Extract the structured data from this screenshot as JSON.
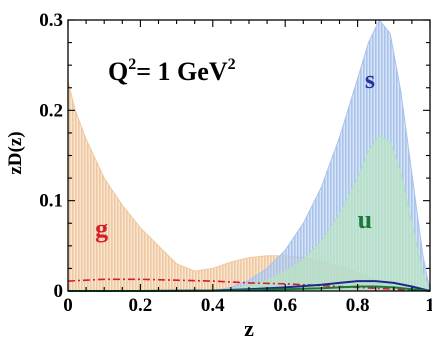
{
  "chart_data": {
    "type": "area",
    "title": "",
    "xlabel": "z",
    "ylabel": "zD(z)",
    "xlim": [
      0,
      1
    ],
    "ylim": [
      0,
      0.3
    ],
    "grid": false,
    "legend": "none",
    "x_ticks": [
      "0",
      "0.2",
      "0.4",
      "0.6",
      "0.8",
      "1"
    ],
    "y_ticks": [
      "0",
      "0.1",
      "0.2",
      "0.3"
    ],
    "annotation": {
      "base": "Q",
      "exp1": "2",
      "mid": "= 1 GeV",
      "exp2": "2"
    },
    "series": [
      {
        "name": "g",
        "style": "band",
        "color": "#f0c8a0",
        "x": [
          0.0,
          0.02,
          0.05,
          0.1,
          0.15,
          0.2,
          0.25,
          0.3,
          0.35,
          0.4,
          0.45,
          0.5,
          0.55,
          0.6,
          0.65,
          0.7,
          0.75,
          0.8,
          0.85,
          0.9,
          0.95,
          1.0
        ],
        "lower": [
          0,
          0,
          0,
          0,
          0,
          0,
          0,
          0,
          0,
          0,
          0,
          0,
          0,
          0,
          0,
          0,
          0,
          0,
          0,
          0,
          0,
          0
        ],
        "upper": [
          0.232,
          0.2,
          0.168,
          0.125,
          0.095,
          0.07,
          0.05,
          0.03,
          0.022,
          0.025,
          0.032,
          0.037,
          0.039,
          0.039,
          0.037,
          0.033,
          0.027,
          0.02,
          0.012,
          0.006,
          0.002,
          0.0
        ]
      },
      {
        "name": "s",
        "style": "band",
        "color": "#a8c4ec",
        "x": [
          0.4,
          0.45,
          0.5,
          0.55,
          0.6,
          0.65,
          0.7,
          0.75,
          0.8,
          0.83,
          0.86,
          0.89,
          0.92,
          0.95,
          0.98,
          1.0
        ],
        "lower": [
          0,
          0,
          0,
          0,
          0,
          0,
          0,
          0,
          0,
          0,
          0,
          0,
          0,
          0,
          0,
          0
        ],
        "upper": [
          0.0,
          0.004,
          0.012,
          0.025,
          0.045,
          0.075,
          0.115,
          0.17,
          0.235,
          0.275,
          0.3,
          0.285,
          0.22,
          0.13,
          0.04,
          0.0
        ]
      },
      {
        "name": "u",
        "style": "band",
        "color": "#b4e0c4",
        "x": [
          0.4,
          0.45,
          0.5,
          0.55,
          0.6,
          0.65,
          0.7,
          0.75,
          0.8,
          0.83,
          0.86,
          0.89,
          0.92,
          0.95,
          0.98,
          1.0
        ],
        "lower": [
          0,
          0,
          0,
          0,
          0,
          0,
          0,
          0,
          0,
          0,
          0,
          0,
          0,
          0,
          0,
          0
        ],
        "upper": [
          0.0,
          0.002,
          0.006,
          0.012,
          0.022,
          0.035,
          0.055,
          0.085,
          0.125,
          0.155,
          0.172,
          0.165,
          0.13,
          0.075,
          0.02,
          0.0
        ]
      },
      {
        "name": "g-central",
        "style": "dashdot",
        "color": "#d0202a",
        "x": [
          0.0,
          0.05,
          0.1,
          0.15,
          0.2,
          0.3,
          0.4,
          0.5,
          0.6,
          0.7,
          0.8,
          0.9,
          1.0
        ],
        "y": [
          0.011,
          0.012,
          0.013,
          0.013,
          0.013,
          0.012,
          0.011,
          0.009,
          0.008,
          0.006,
          0.004,
          0.002,
          0.0
        ]
      },
      {
        "name": "s-central",
        "style": "solid",
        "color": "#1c2a8c",
        "x": [
          0.0,
          0.2,
          0.4,
          0.5,
          0.6,
          0.7,
          0.75,
          0.8,
          0.85,
          0.9,
          0.95,
          1.0
        ],
        "y": [
          0.0,
          0.0,
          0.0005,
          0.002,
          0.004,
          0.007,
          0.009,
          0.011,
          0.011,
          0.009,
          0.005,
          0.0
        ]
      },
      {
        "name": "u-central",
        "style": "solid",
        "color": "#1a7a3a",
        "x": [
          0.0,
          0.2,
          0.4,
          0.5,
          0.6,
          0.7,
          0.75,
          0.8,
          0.85,
          0.9,
          0.95,
          1.0
        ],
        "y": [
          0.0,
          0.0,
          0.0003,
          0.001,
          0.002,
          0.003,
          0.004,
          0.005,
          0.005,
          0.004,
          0.002,
          0.0
        ]
      }
    ],
    "labels": [
      {
        "text": "g",
        "color": "#d0202a",
        "x": 0.075,
        "y": 0.06
      },
      {
        "text": "s",
        "color": "#24369c",
        "x": 0.82,
        "y": 0.225
      },
      {
        "text": "u",
        "color": "#1a7a3a",
        "x": 0.8,
        "y": 0.07
      }
    ]
  }
}
